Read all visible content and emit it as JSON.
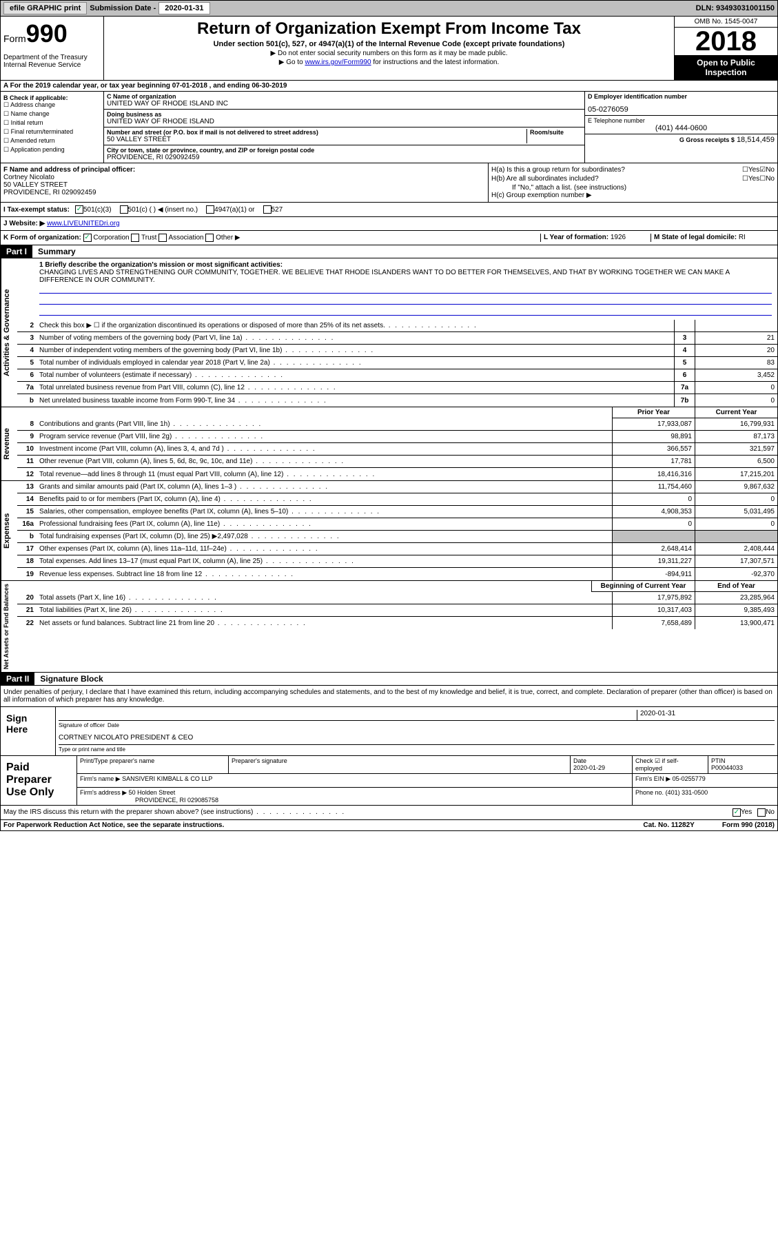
{
  "topbar": {
    "efile": "efile GRAPHIC print",
    "sub_label": "Submission Date -",
    "sub_date": "2020-01-31",
    "dln": "DLN: 93493031001150"
  },
  "header": {
    "form": "Form",
    "formnum": "990",
    "dept": "Department of the Treasury\nInternal Revenue Service",
    "title": "Return of Organization Exempt From Income Tax",
    "subtitle": "Under section 501(c), 527, or 4947(a)(1) of the Internal Revenue Code (except private foundations)",
    "note1": "▶ Do not enter social security numbers on this form as it may be made public.",
    "note2_pre": "▶ Go to ",
    "note2_link": "www.irs.gov/Form990",
    "note2_post": " for instructions and the latest information.",
    "omb": "OMB No. 1545-0047",
    "year": "2018",
    "open": "Open to Public Inspection"
  },
  "taxyear": "A For the 2019 calendar year, or tax year beginning 07-01-2018   , and ending 06-30-2019",
  "boxB": {
    "label": "B Check if applicable:",
    "opts": [
      "Address change",
      "Name change",
      "Initial return",
      "Final return/terminated",
      "Amended return",
      "Application pending"
    ]
  },
  "boxC": {
    "name_lbl": "C Name of organization",
    "name": "UNITED WAY OF RHODE ISLAND INC",
    "dba_lbl": "Doing business as",
    "dba": "UNITED WAY OF RHODE ISLAND",
    "addr_lbl": "Number and street (or P.O. box if mail is not delivered to street address)",
    "room_lbl": "Room/suite",
    "addr": "50 VALLEY STREET",
    "city_lbl": "City or town, state or province, country, and ZIP or foreign postal code",
    "city": "PROVIDENCE, RI  029092459"
  },
  "boxD": {
    "lbl": "D Employer identification number",
    "val": "05-0276059"
  },
  "boxE": {
    "lbl": "E Telephone number",
    "val": "(401) 444-0600"
  },
  "boxG": {
    "lbl": "G Gross receipts $",
    "val": "18,514,459"
  },
  "boxF": {
    "lbl": "F Name and address of principal officer:",
    "name": "Cortney Nicolato",
    "addr1": "50 VALLEY STREET",
    "addr2": "PROVIDENCE, RI  029092459"
  },
  "boxH": {
    "a": "H(a)  Is this a group return for subordinates?",
    "b": "H(b)  Are all subordinates included?",
    "bnote": "If \"No,\" attach a list. (see instructions)",
    "c": "H(c)  Group exemption number ▶",
    "yes": "Yes",
    "no": "No"
  },
  "boxI": {
    "lbl": "I  Tax-exempt status:",
    "o1": "501(c)(3)",
    "o2": "501(c) (  ) ◀ (insert no.)",
    "o3": "4947(a)(1) or",
    "o4": "527"
  },
  "boxJ": {
    "lbl": "J  Website: ▶ ",
    "val": "www.LIVEUNITEDri.org"
  },
  "boxK": {
    "lbl": "K Form of organization:",
    "o1": "Corporation",
    "o2": "Trust",
    "o3": "Association",
    "o4": "Other ▶"
  },
  "boxL": {
    "lbl": "L Year of formation:",
    "val": "1926"
  },
  "boxM": {
    "lbl": "M State of legal domicile:",
    "val": "RI"
  },
  "part1": {
    "hdr": "Part I",
    "title": "Summary"
  },
  "mission": {
    "lbl": "1  Briefly describe the organization's mission or most significant activities:",
    "txt": "CHANGING LIVES AND STRENGTHENING OUR COMMUNITY, TOGETHER. WE BELIEVE THAT RHODE ISLANDERS WANT TO DO BETTER FOR THEMSELVES, AND THAT BY WORKING TOGETHER WE CAN MAKE A DIFFERENCE IN OUR COMMUNITY."
  },
  "gov": [
    {
      "n": "2",
      "t": "Check this box ▶ ☐  if the organization discontinued its operations or disposed of more than 25% of its net assets.",
      "b": "",
      "v": ""
    },
    {
      "n": "3",
      "t": "Number of voting members of the governing body (Part VI, line 1a)",
      "b": "3",
      "v": "21"
    },
    {
      "n": "4",
      "t": "Number of independent voting members of the governing body (Part VI, line 1b)",
      "b": "4",
      "v": "20"
    },
    {
      "n": "5",
      "t": "Total number of individuals employed in calendar year 2018 (Part V, line 2a)",
      "b": "5",
      "v": "83"
    },
    {
      "n": "6",
      "t": "Total number of volunteers (estimate if necessary)",
      "b": "6",
      "v": "3,452"
    },
    {
      "n": "7a",
      "t": "Total unrelated business revenue from Part VIII, column (C), line 12",
      "b": "7a",
      "v": "0"
    },
    {
      "n": "b",
      "t": "Net unrelated business taxable income from Form 990-T, line 34",
      "b": "7b",
      "v": "0"
    }
  ],
  "col_prior": "Prior Year",
  "col_curr": "Current Year",
  "rev": [
    {
      "n": "8",
      "t": "Contributions and grants (Part VIII, line 1h)",
      "p": "17,933,087",
      "c": "16,799,931"
    },
    {
      "n": "9",
      "t": "Program service revenue (Part VIII, line 2g)",
      "p": "98,891",
      "c": "87,173"
    },
    {
      "n": "10",
      "t": "Investment income (Part VIII, column (A), lines 3, 4, and 7d )",
      "p": "366,557",
      "c": "321,597"
    },
    {
      "n": "11",
      "t": "Other revenue (Part VIII, column (A), lines 5, 6d, 8c, 9c, 10c, and 11e)",
      "p": "17,781",
      "c": "6,500"
    },
    {
      "n": "12",
      "t": "Total revenue—add lines 8 through 11 (must equal Part VIII, column (A), line 12)",
      "p": "18,416,316",
      "c": "17,215,201"
    }
  ],
  "exp": [
    {
      "n": "13",
      "t": "Grants and similar amounts paid (Part IX, column (A), lines 1–3 )",
      "p": "11,754,460",
      "c": "9,867,632"
    },
    {
      "n": "14",
      "t": "Benefits paid to or for members (Part IX, column (A), line 4)",
      "p": "0",
      "c": "0"
    },
    {
      "n": "15",
      "t": "Salaries, other compensation, employee benefits (Part IX, column (A), lines 5–10)",
      "p": "4,908,353",
      "c": "5,031,495"
    },
    {
      "n": "16a",
      "t": "Professional fundraising fees (Part IX, column (A), line 11e)",
      "p": "0",
      "c": "0"
    },
    {
      "n": "b",
      "t": "Total fundraising expenses (Part IX, column (D), line 25) ▶2,497,028",
      "p": "",
      "c": "",
      "shade": true
    },
    {
      "n": "17",
      "t": "Other expenses (Part IX, column (A), lines 11a–11d, 11f–24e)",
      "p": "2,648,414",
      "c": "2,408,444"
    },
    {
      "n": "18",
      "t": "Total expenses. Add lines 13–17 (must equal Part IX, column (A), line 25)",
      "p": "19,311,227",
      "c": "17,307,571"
    },
    {
      "n": "19",
      "t": "Revenue less expenses. Subtract line 18 from line 12",
      "p": "-894,911",
      "c": "-92,370"
    }
  ],
  "col_beg": "Beginning of Current Year",
  "col_end": "End of Year",
  "net": [
    {
      "n": "20",
      "t": "Total assets (Part X, line 16)",
      "p": "17,975,892",
      "c": "23,285,964"
    },
    {
      "n": "21",
      "t": "Total liabilities (Part X, line 26)",
      "p": "10,317,403",
      "c": "9,385,493"
    },
    {
      "n": "22",
      "t": "Net assets or fund balances. Subtract line 21 from line 20",
      "p": "7,658,489",
      "c": "13,900,471"
    }
  ],
  "vtabs": {
    "gov": "Activities & Governance",
    "rev": "Revenue",
    "exp": "Expenses",
    "net": "Net Assets or Fund Balances"
  },
  "part2": {
    "hdr": "Part II",
    "title": "Signature Block"
  },
  "sig": {
    "decl": "Under penalties of perjury, I declare that I have examined this return, including accompanying schedules and statements, and to the best of my knowledge and belief, it is true, correct, and complete. Declaration of preparer (other than officer) is based on all information of which preparer has any knowledge.",
    "sign_here": "Sign Here",
    "sig_officer": "Signature of officer",
    "date_lbl": "Date",
    "date": "2020-01-31",
    "name": "CORTNEY NICOLATO PRESIDENT & CEO",
    "name_lbl": "Type or print name and title"
  },
  "prep": {
    "lbl": "Paid Preparer Use Only",
    "h1": "Print/Type preparer's name",
    "h2": "Preparer's signature",
    "h3": "Date",
    "h4": "Check ☑ if self-employed",
    "h5": "PTIN",
    "date": "2020-01-29",
    "ptin": "P00044033",
    "firm_lbl": "Firm's name   ▶",
    "firm": "SANSIVERI KIMBALL & CO LLP",
    "ein_lbl": "Firm's EIN ▶",
    "ein": "05-0255779",
    "addr_lbl": "Firm's address ▶",
    "addr1": "50 Holden Street",
    "addr2": "PROVIDENCE, RI  029085758",
    "phone_lbl": "Phone no.",
    "phone": "(401) 331-0500"
  },
  "discuss": "May the IRS discuss this return with the preparer shown above? (see instructions)",
  "yes": "Yes",
  "no": "No",
  "footer": {
    "pra": "For Paperwork Reduction Act Notice, see the separate instructions.",
    "cat": "Cat. No. 11282Y",
    "form": "Form 990 (2018)"
  }
}
